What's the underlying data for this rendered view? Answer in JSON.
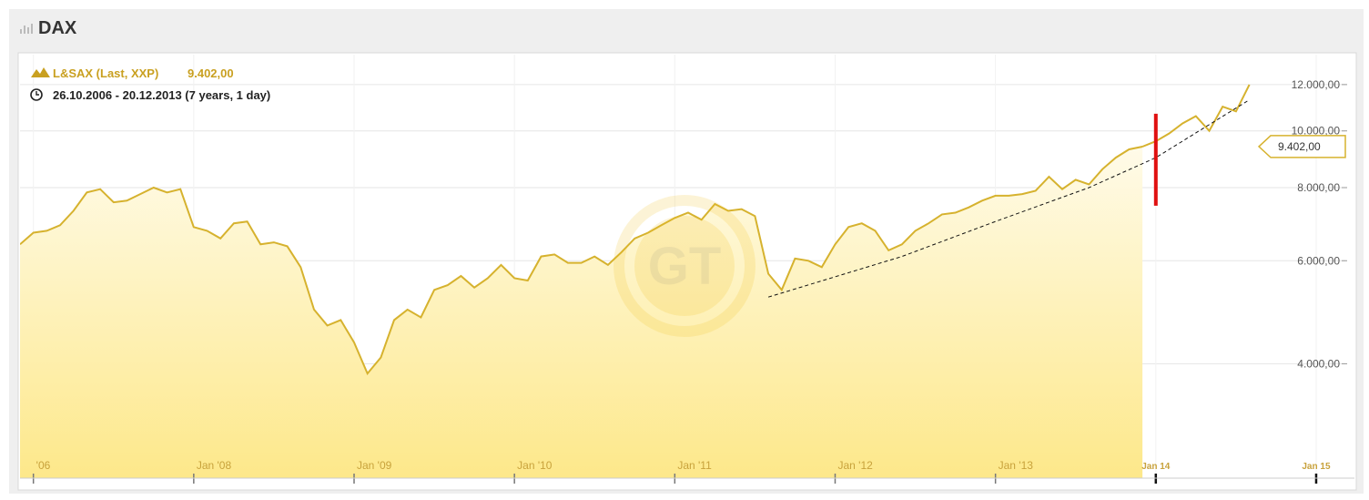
{
  "header": {
    "title": "DAX"
  },
  "chart_data": {
    "type": "line",
    "legend_label": "L&SAX (Last, XXP)",
    "last_value": {
      "value": 9402,
      "label": "9.402,00"
    },
    "date_range": "26.10.2006 - 20.12.2013 (7 years, 1 day)",
    "log_scale": true,
    "grid": true,
    "xlim": [
      "2006-12",
      "2015-04"
    ],
    "ylim": [
      2550,
      13500
    ],
    "xticks": [
      {
        "value": "2007-01",
        "label": "'06"
      },
      {
        "value": "2008-01",
        "label": "Jan '08"
      },
      {
        "value": "2009-01",
        "label": "Jan '09"
      },
      {
        "value": "2010-01",
        "label": "Jan '10"
      },
      {
        "value": "2011-01",
        "label": "Jan '11"
      },
      {
        "value": "2012-01",
        "label": "Jan '12"
      },
      {
        "value": "2013-01",
        "label": "Jan '13"
      },
      {
        "value": "2014-01",
        "label": "Jan 14"
      },
      {
        "value": "2015-01",
        "label": "Jan 15"
      }
    ],
    "yticks": [
      {
        "value": 4000,
        "label": "4.000,00"
      },
      {
        "value": 6000,
        "label": "6.000,00"
      },
      {
        "value": 8000,
        "label": "8.000,00"
      },
      {
        "value": 10000,
        "label": "10.000,00"
      },
      {
        "value": 12000,
        "label": "12.000,00"
      }
    ],
    "series": [
      {
        "color": "#d6b22e",
        "x": [
          "2006-12",
          "2007-01",
          "2007-02",
          "2007-03",
          "2007-04",
          "2007-05",
          "2007-06",
          "2007-07",
          "2007-08",
          "2007-09",
          "2007-10",
          "2007-11",
          "2007-12",
          "2008-01",
          "2008-02",
          "2008-03",
          "2008-04",
          "2008-05",
          "2008-06",
          "2008-07",
          "2008-08",
          "2008-09",
          "2008-10",
          "2008-11",
          "2008-12",
          "2009-01",
          "2009-02",
          "2009-03",
          "2009-04",
          "2009-05",
          "2009-06",
          "2009-07",
          "2009-08",
          "2009-09",
          "2009-10",
          "2009-11",
          "2009-12",
          "2010-01",
          "2010-02",
          "2010-03",
          "2010-04",
          "2010-05",
          "2010-06",
          "2010-07",
          "2010-08",
          "2010-09",
          "2010-10",
          "2010-11",
          "2010-12",
          "2011-01",
          "2011-02",
          "2011-03",
          "2011-04",
          "2011-05",
          "2011-06",
          "2011-07",
          "2011-08",
          "2011-09",
          "2011-10",
          "2011-11",
          "2011-12",
          "2012-01",
          "2012-02",
          "2012-03",
          "2012-04",
          "2012-05",
          "2012-06",
          "2012-07",
          "2012-08",
          "2012-09",
          "2012-10",
          "2012-11",
          "2012-12",
          "2013-01",
          "2013-02",
          "2013-03",
          "2013-04",
          "2013-05",
          "2013-06",
          "2013-07",
          "2013-08",
          "2013-09",
          "2013-10",
          "2013-11",
          "2013-12"
        ],
        "values": [
          6400,
          6700,
          6750,
          6900,
          7300,
          7850,
          7950,
          7550,
          7600,
          7800,
          8000,
          7850,
          7950,
          6850,
          6750,
          6550,
          6950,
          7000,
          6400,
          6450,
          6350,
          5850,
          4950,
          4650,
          4750,
          4350,
          3850,
          4100,
          4750,
          4950,
          4800,
          5350,
          5450,
          5650,
          5400,
          5600,
          5900,
          5600,
          5550,
          6100,
          6150,
          5950,
          5950,
          6100,
          5900,
          6200,
          6550,
          6700,
          6900,
          7100,
          7250,
          7050,
          7500,
          7300,
          7350,
          7150,
          5700,
          5350,
          6050,
          6000,
          5850,
          6400,
          6850,
          6950,
          6750,
          6250,
          6400,
          6750,
          6950,
          7200,
          7250,
          7400,
          7600,
          7750,
          7750,
          7800,
          7900,
          8350,
          7950,
          8250,
          8100,
          8600,
          9000,
          9300,
          9400
        ]
      },
      {
        "color": "#d6b22e",
        "x": [
          "2013-12",
          "2014-01",
          "2014-02",
          "2014-03",
          "2014-04",
          "2014-05",
          "2014-06",
          "2014-07",
          "2014-08"
        ],
        "values": [
          9400,
          9600,
          9900,
          10300,
          10600,
          10000,
          11000,
          10800,
          12000
        ]
      }
    ],
    "trend_line": {
      "x": [
        "2011-08",
        "2012-06",
        "2013-01",
        "2013-08",
        "2014-01",
        "2014-08"
      ],
      "values": [
        5200,
        6100,
        7000,
        8000,
        9000,
        11300
      ]
    },
    "marker": {
      "x": "2014-01",
      "from": 7450,
      "to": 10700
    }
  }
}
